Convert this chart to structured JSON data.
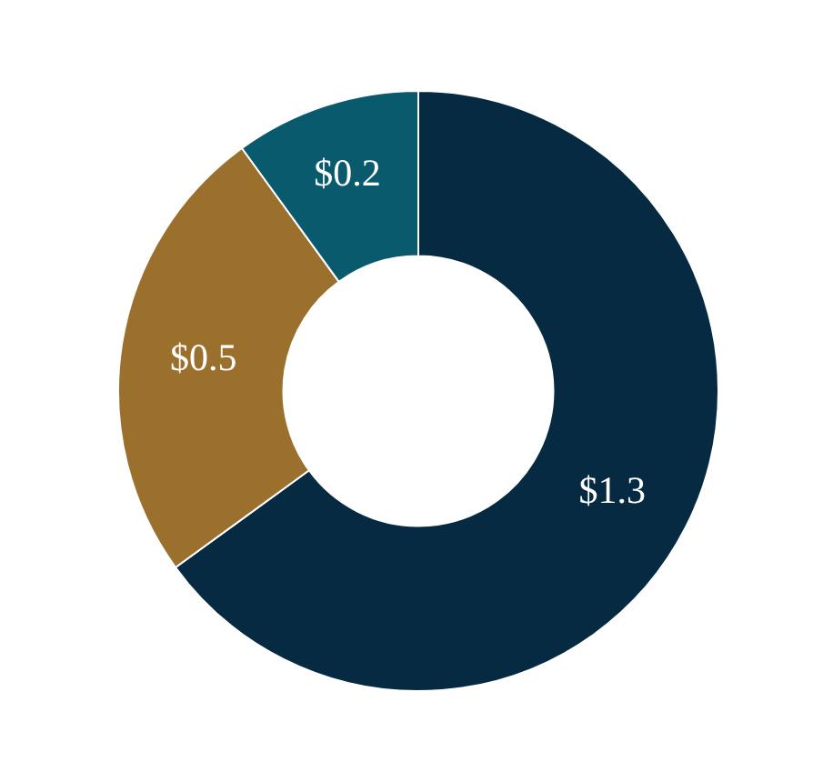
{
  "chart_data": {
    "type": "donut",
    "categories": [
      null,
      null,
      null
    ],
    "values": [
      1.3,
      0.5,
      0.2
    ],
    "value_labels": [
      "$1.3",
      "$0.5",
      "$0.2"
    ],
    "colors": [
      "#052a42",
      "#9a702c",
      "#0a5a6e"
    ]
  }
}
